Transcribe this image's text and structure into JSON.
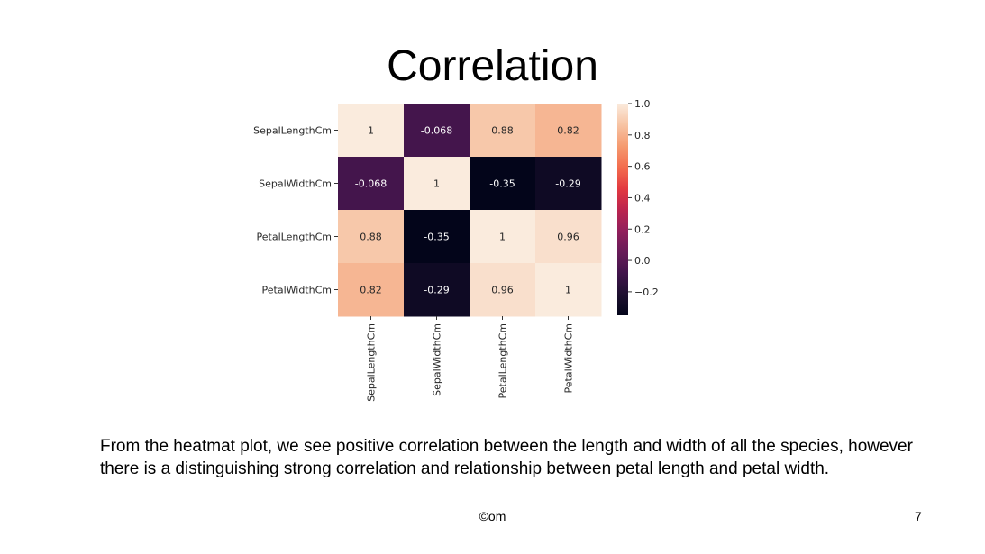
{
  "slide": {
    "title": "Correlation",
    "body": "From the heatmat plot, we see positive correlation between the length and width of all the species, however there is a distinguishing strong correlation and relationship between petal length and petal width.",
    "footer": "©om",
    "page_number": "7"
  },
  "chart_data": {
    "type": "heatmap",
    "title": "",
    "xlabel": "",
    "ylabel": "",
    "rows": [
      "SepalLengthCm",
      "SepalWidthCm",
      "PetalLengthCm",
      "PetalWidthCm"
    ],
    "columns": [
      "SepalLengthCm",
      "SepalWidthCm",
      "PetalLengthCm",
      "PetalWidthCm"
    ],
    "values": [
      [
        1,
        -0.068,
        0.88,
        0.82
      ],
      [
        -0.068,
        1,
        -0.35,
        -0.29
      ],
      [
        0.88,
        -0.35,
        1,
        0.96
      ],
      [
        0.82,
        -0.29,
        0.96,
        1
      ]
    ],
    "annotations": [
      [
        "1",
        "-0.068",
        "0.88",
        "0.82"
      ],
      [
        "-0.068",
        "1",
        "-0.35",
        "-0.29"
      ],
      [
        "0.88",
        "-0.35",
        "1",
        "0.96"
      ],
      [
        "0.82",
        "-0.29",
        "0.96",
        "1"
      ]
    ],
    "colorbar": {
      "range": [
        -0.35,
        1.0
      ],
      "ticks": [
        1.0,
        0.8,
        0.6,
        0.4,
        0.2,
        0.0,
        -0.2
      ],
      "tick_labels": [
        "1.0",
        "0.8",
        "0.6",
        "0.4",
        "0.2",
        "0.0",
        "−0.2"
      ],
      "colormap": "rocket"
    }
  }
}
